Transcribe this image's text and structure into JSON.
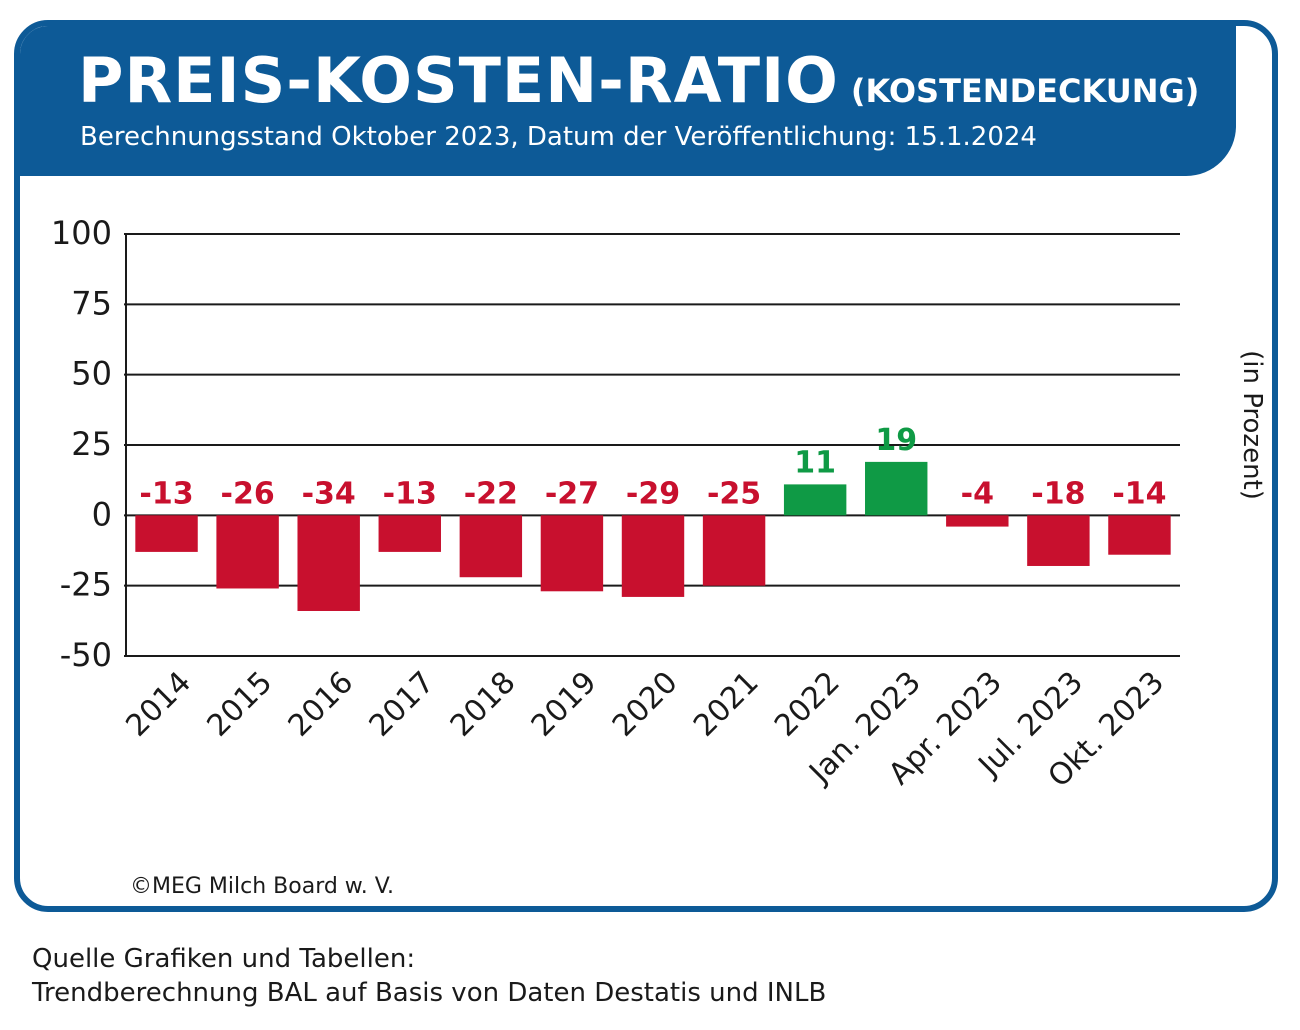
{
  "header": {
    "title": "PREIS-KOSTEN-RATIO",
    "title_suffix": "(KOSTENDECKUNG)",
    "subtitle": "Berechnungsstand Oktober 2023, Datum der Veröffentlichung: 15.1.2024"
  },
  "footer": {
    "copyright": "©MEG Milch Board w. V.",
    "source_line1": "Quelle Grafiken und Tabellen:",
    "source_line2": "Trendberechnung BAL auf Basis von Daten Destatis und INLB"
  },
  "colors": {
    "brand": "#0d5a97",
    "negative": "#c8102e",
    "positive": "#0f9a45"
  },
  "chart_data": {
    "type": "bar",
    "title": "PREIS-KOSTEN-RATIO (KOSTENDECKUNG)",
    "xlabel": "",
    "ylabel": "(in Prozent)",
    "ylim": [
      -50,
      100
    ],
    "yticks": [
      100,
      75,
      50,
      25,
      0,
      -25,
      -50
    ],
    "grid": true,
    "categories": [
      "2014",
      "2015",
      "2016",
      "2017",
      "2018",
      "2019",
      "2020",
      "2021",
      "2022",
      "Jan. 2023",
      "Apr. 2023",
      "Jul. 2023",
      "Okt. 2023"
    ],
    "values": [
      -13,
      -26,
      -34,
      -13,
      -22,
      -27,
      -29,
      -25,
      11,
      19,
      -4,
      -18,
      -14
    ],
    "data_labels": [
      "-13",
      "-26",
      "-34",
      "-13",
      "-22",
      "-27",
      "-29",
      "-25",
      "11",
      "19",
      "-4",
      "-18",
      "-14"
    ],
    "legend": "none"
  }
}
